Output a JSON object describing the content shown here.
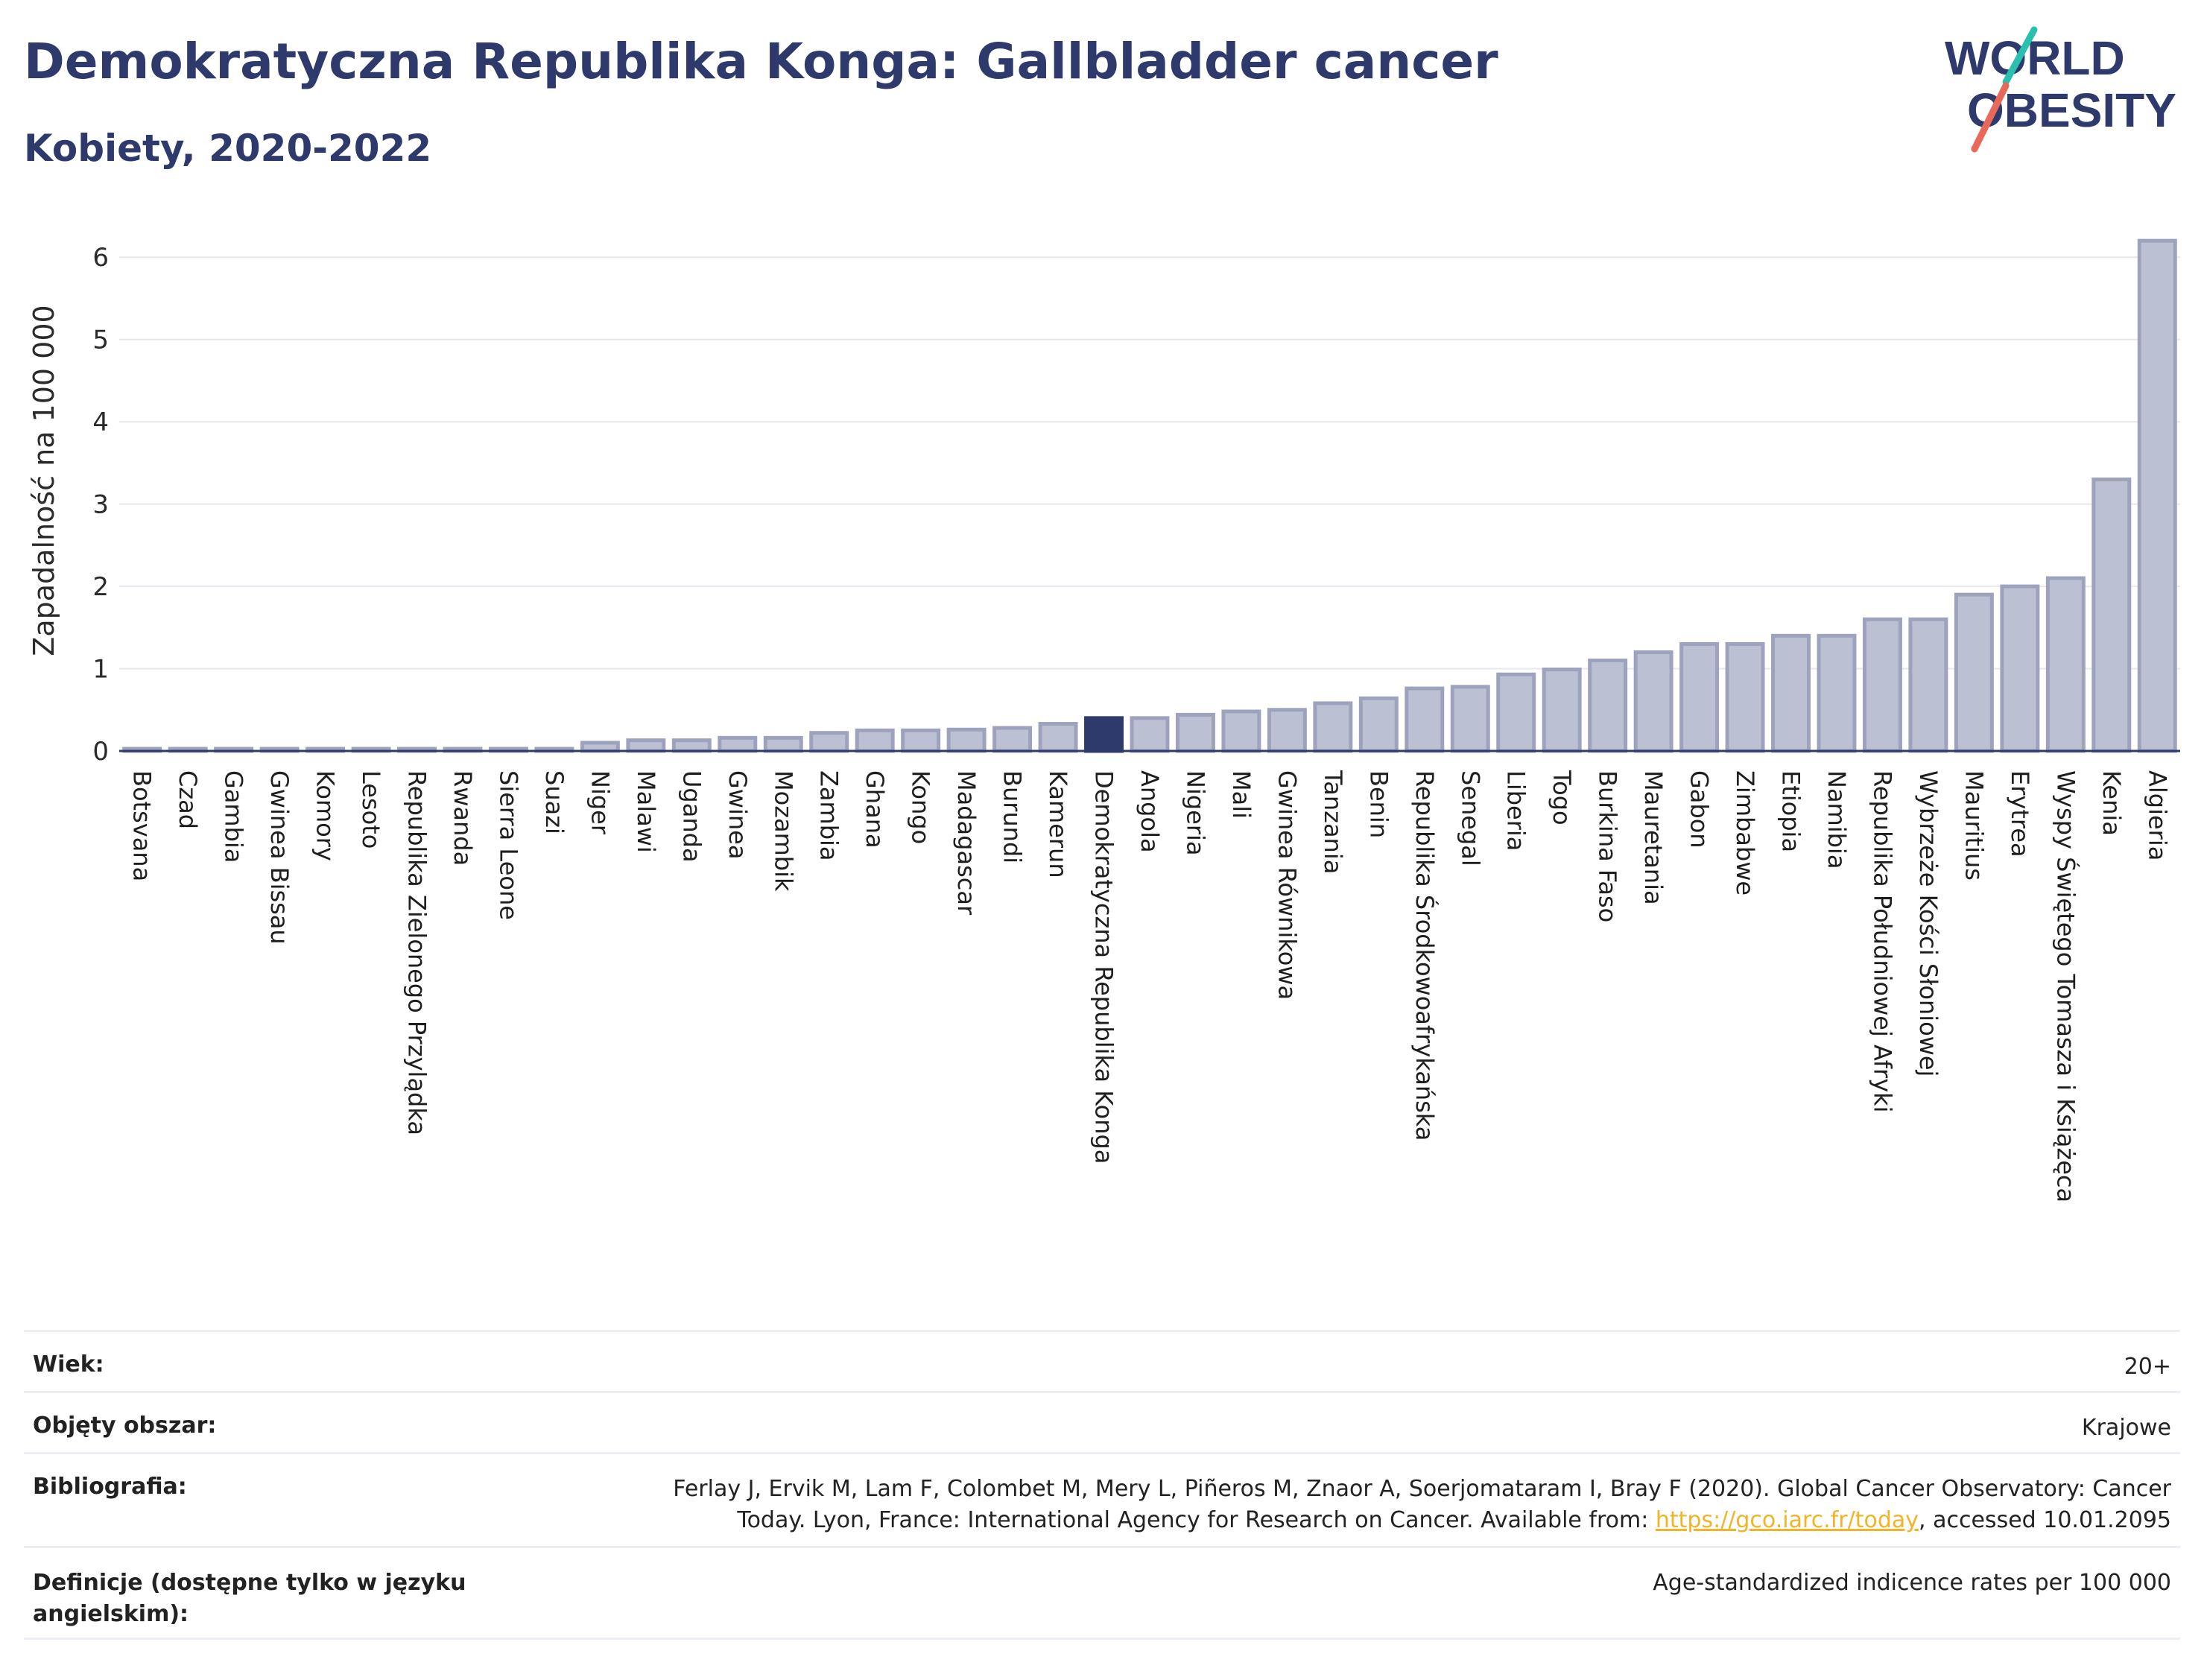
{
  "header": {
    "title": "Demokratyczna Republika Konga: Gallbladder cancer",
    "subtitle": "Kobiety, 2020-2022"
  },
  "logo": {
    "line1": "WORLD",
    "line2": "OBESITY"
  },
  "colors": {
    "bar": "#bcc0d3",
    "bar_stroke": "#9ea3bd",
    "highlight": "#2e3a6b",
    "text": "#2e3a6b",
    "logo_teal": "#2bbfb0",
    "logo_red": "#e8695a"
  },
  "chart_data": {
    "type": "bar",
    "ylabel": "Zapadalność na 100 000",
    "ylim": [
      0,
      6.5
    ],
    "yticks": [
      0,
      1,
      2,
      3,
      4,
      5,
      6
    ],
    "grid": true,
    "highlight": "Demokratyczna Republika Konga",
    "categories": [
      "Botsvana",
      "Czad",
      "Gambia",
      "Gwinea Bissau",
      "Komory",
      "Lesoto",
      "Republika Zielonego Przylądka",
      "Rwanda",
      "Sierra Leone",
      "Suazi",
      "Niger",
      "Malawi",
      "Uganda",
      "Gwinea",
      "Mozambik",
      "Zambia",
      "Ghana",
      "Kongo",
      "Madagascar",
      "Burundi",
      "Kamerun",
      "Demokratyczna Republika Konga",
      "Angola",
      "Nigeria",
      "Mali",
      "Gwinea Równikowa",
      "Tanzania",
      "Benin",
      "Republika Środkowoafrykańska",
      "Senegal",
      "Liberia",
      "Togo",
      "Burkina Faso",
      "Mauretania",
      "Gabon",
      "Zimbabwe",
      "Etiopia",
      "Namibia",
      "Republika Południowej Afryki",
      "Wybrzeże Kości Słoniowej",
      "Mauritius",
      "Erytrea",
      "Wyspy Świętego Tomasza i Książęca",
      "Kenia",
      "Algieria"
    ],
    "values": [
      0.01,
      0.01,
      0.01,
      0.01,
      0.01,
      0.01,
      0.01,
      0.01,
      0.01,
      0.01,
      0.1,
      0.13,
      0.13,
      0.16,
      0.16,
      0.22,
      0.25,
      0.25,
      0.26,
      0.28,
      0.33,
      0.4,
      0.4,
      0.44,
      0.48,
      0.5,
      0.58,
      0.64,
      0.76,
      0.78,
      0.93,
      0.99,
      1.1,
      1.2,
      1.3,
      1.3,
      1.4,
      1.4,
      1.6,
      1.6,
      1.9,
      2.0,
      2.1,
      3.3,
      6.2
    ]
  },
  "meta": [
    {
      "key": "Wiek:",
      "value": "20+"
    },
    {
      "key": "Objęty obszar:",
      "value": "Krajowe"
    },
    {
      "key": "Bibliografia:",
      "value_line1": "Ferlay J, Ervik M, Lam F, Colombet M, Mery L, Piñeros M, Znaor A, Soerjomataram I, Bray F (2020). Global Cancer Observatory: Cancer",
      "value_line2_pre": "Today. Lyon, France: International Agency for Research on Cancer. Available from: ",
      "link": "https://gco.iarc.fr/today",
      "value_line2_post": ", accessed 10.01.2095"
    },
    {
      "key_line1": "Definicje (dostępne tylko w języku",
      "key_line2": "angielskim):",
      "value": "Age-standardized indicence rates per 100 000"
    }
  ]
}
